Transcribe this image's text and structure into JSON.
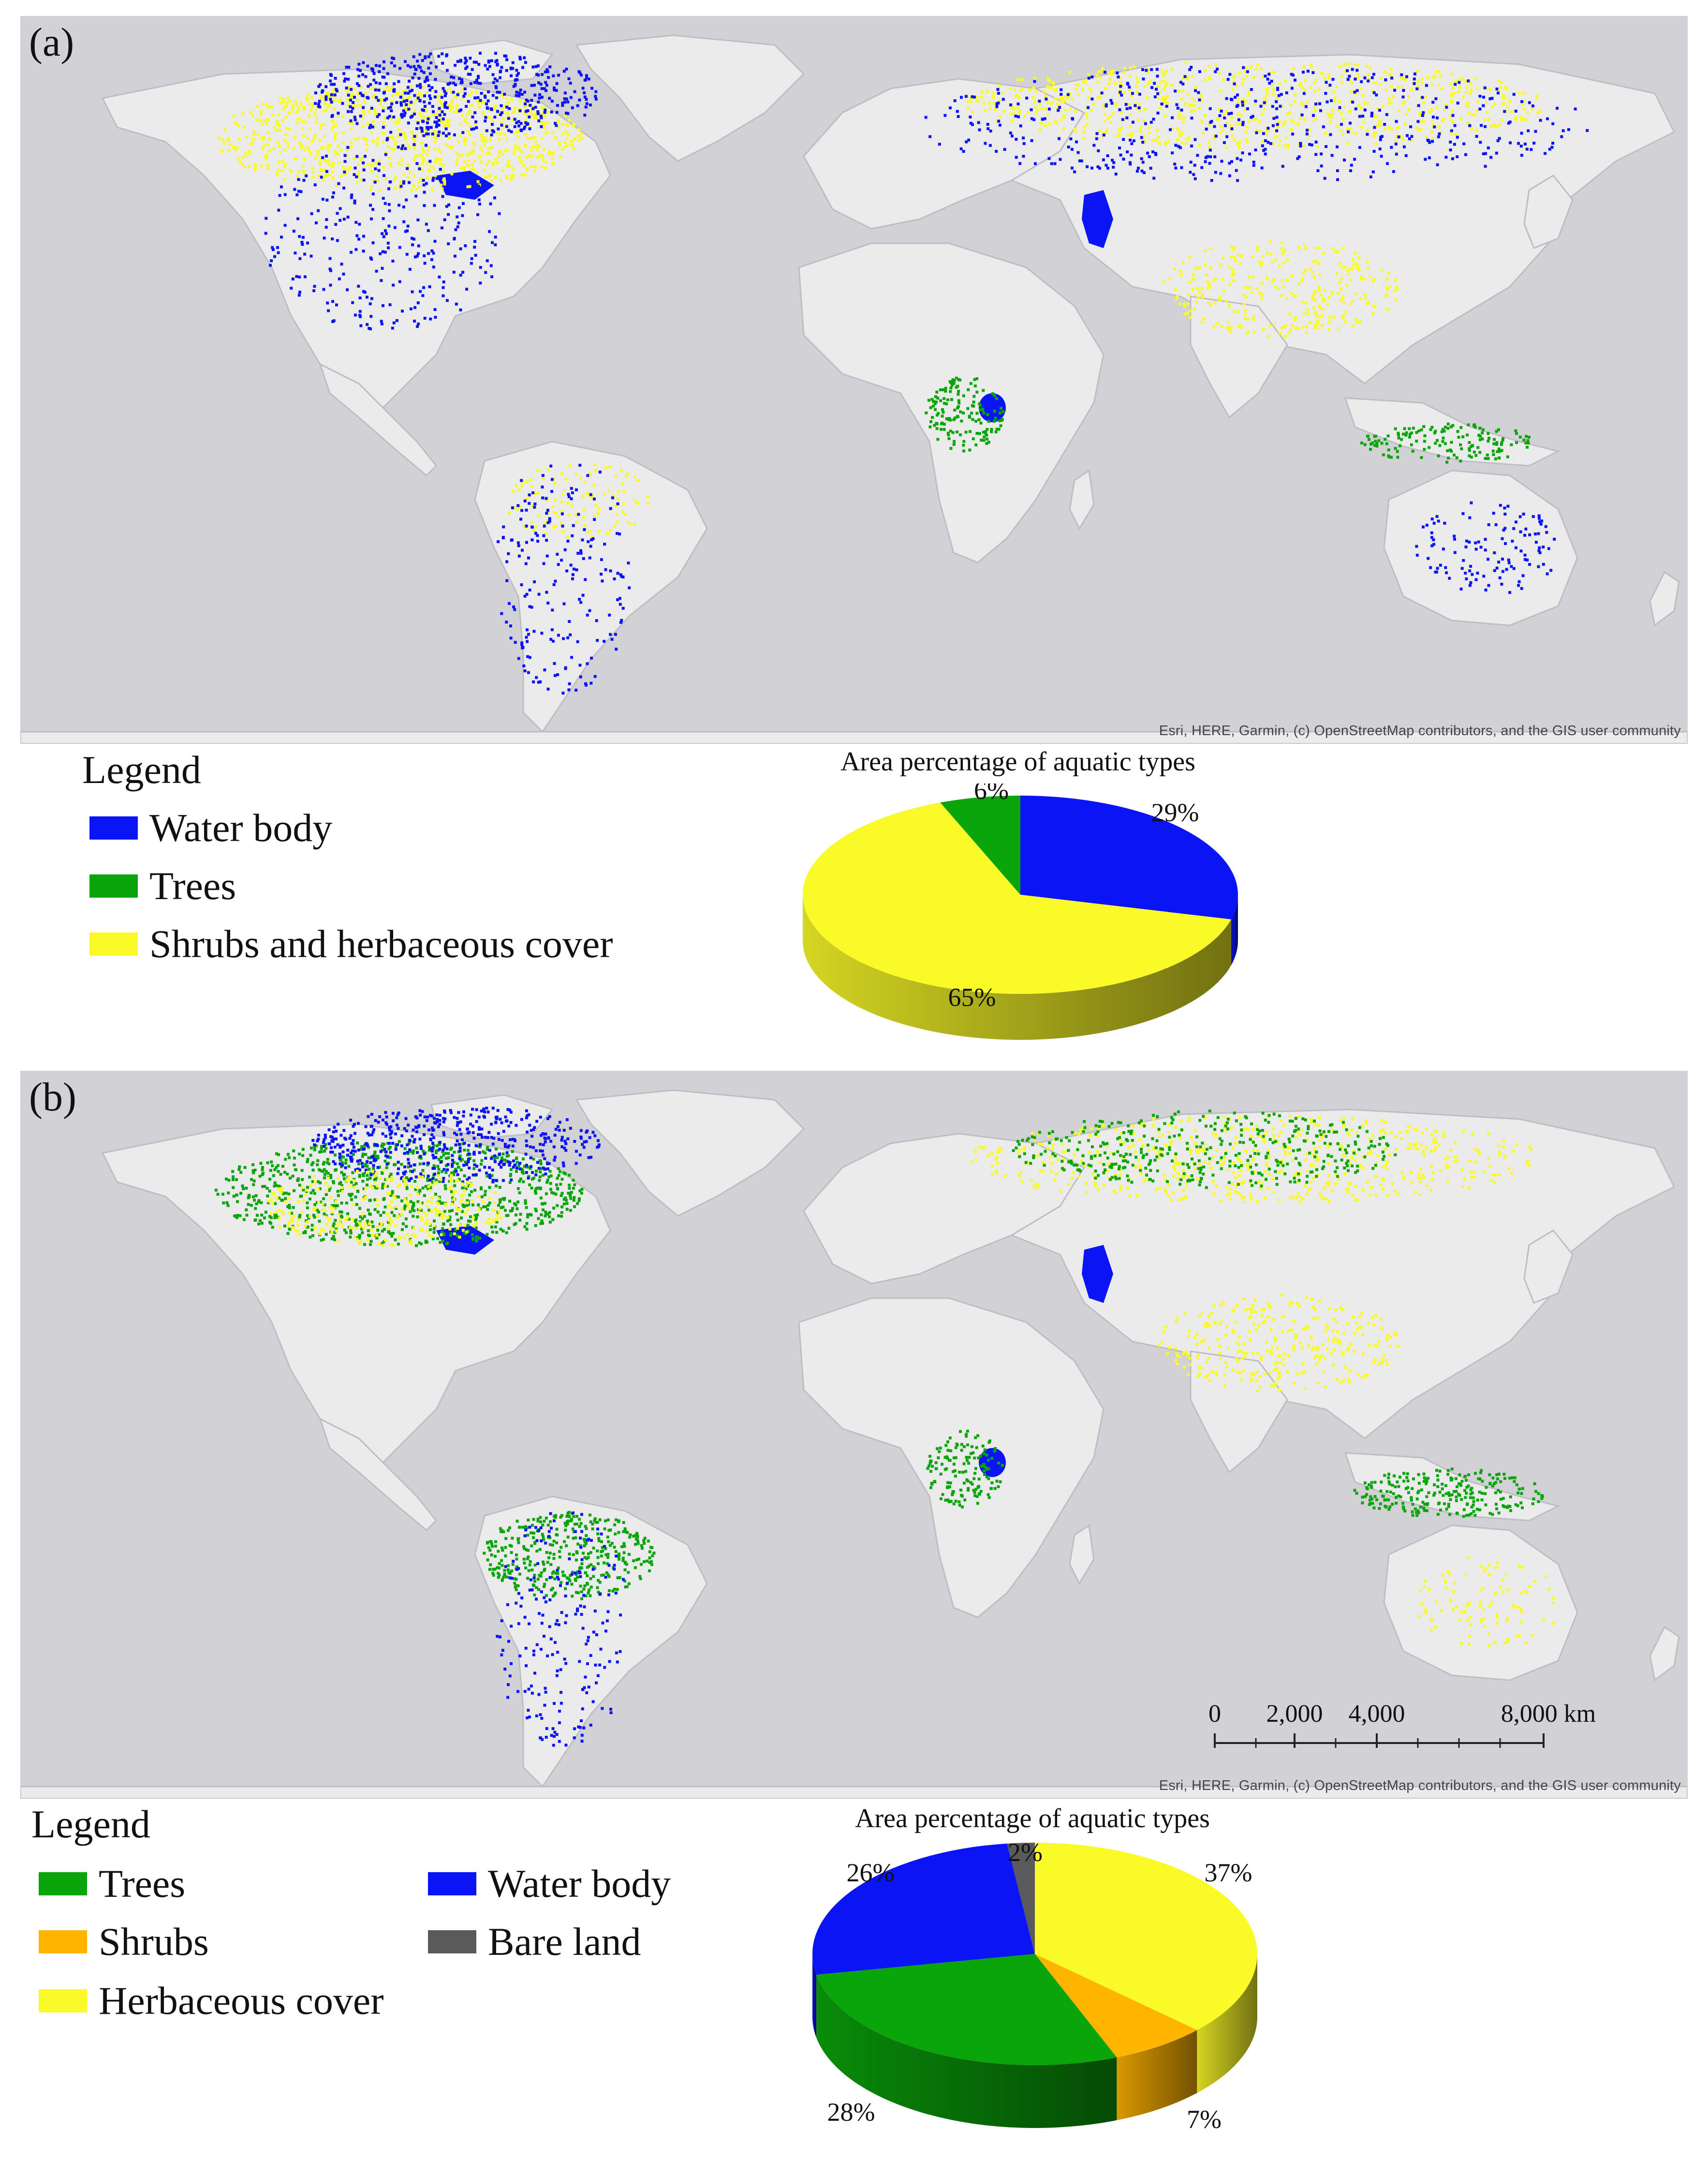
{
  "colors": {
    "ocean": "#d2d1d6",
    "land": "#ebebeb",
    "border": "#bdbdc3",
    "water_body": "#0a14f5",
    "trees": "#0aa50a",
    "shrubs": "#ffb400",
    "herbaceous": "#fafa28",
    "bare_land": "#5a5a5a"
  },
  "panel_a": {
    "label": "(a)",
    "attribution": "Esri, HERE, Garmin, (c) OpenStreetMap contributors, and the GIS user community",
    "legend": {
      "title": "Legend",
      "items": [
        {
          "label": "Water body",
          "color": "#0a14f5"
        },
        {
          "label": "Trees",
          "color": "#0aa50a"
        },
        {
          "label": "Shrubs and herbaceous cover",
          "color": "#fafa28"
        }
      ]
    },
    "pie_title": "Area percentage of aquatic types"
  },
  "panel_b": {
    "label": "(b)",
    "attribution": "Esri, HERE, Garmin, (c) OpenStreetMap contributors, and the GIS user community",
    "scalebar": {
      "labels": [
        "0",
        "2,000",
        "4,000",
        "8,000 km"
      ]
    },
    "legend": {
      "title": "Legend",
      "items": [
        {
          "label": "Trees",
          "color": "#0aa50a"
        },
        {
          "label": "Shrubs",
          "color": "#ffb400"
        },
        {
          "label": "Herbaceous cover",
          "color": "#fafa28"
        },
        {
          "label": "Water body",
          "color": "#0a14f5"
        },
        {
          "label": "Bare land",
          "color": "#5a5a5a"
        }
      ]
    },
    "pie_title": "Area percentage of aquatic types"
  },
  "chart_data": [
    {
      "type": "pie",
      "title": "Area percentage of aquatic types",
      "categories": [
        "Water body",
        "Shrubs and herbaceous cover",
        "Trees"
      ],
      "values": [
        29,
        65,
        6
      ],
      "labels": [
        "29%",
        "65%",
        "6%"
      ],
      "colors": [
        "#0a14f5",
        "#fafa28",
        "#0aa50a"
      ]
    },
    {
      "type": "pie",
      "title": "Area percentage of aquatic types",
      "categories": [
        "Herbaceous cover",
        "Shrubs",
        "Trees",
        "Water body",
        "Bare land"
      ],
      "values": [
        37,
        7,
        28,
        26,
        2
      ],
      "labels": [
        "37%",
        "7%",
        "28%",
        "26%",
        "2%"
      ],
      "colors": [
        "#fafa28",
        "#ffb400",
        "#0aa50a",
        "#0a14f5",
        "#5a5a5a"
      ]
    }
  ]
}
